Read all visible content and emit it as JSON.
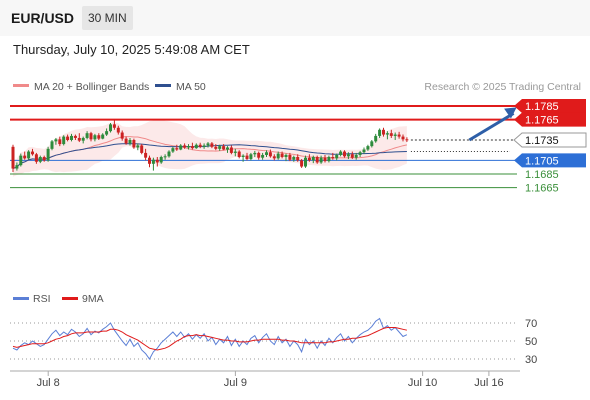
{
  "header": {
    "symbol": "EUR/USD",
    "timeframe": "30 MIN",
    "timestamp": "Thursday, July 10, 2025 5:49:08 AM CET"
  },
  "chart_data": {
    "type": "candlestick",
    "legend": [
      {
        "label": "MA 20 + Bollinger Bands",
        "color": "#f08a8a"
      },
      {
        "label": "MA 50",
        "color": "#2e4f8f"
      }
    ],
    "watermark": "Research © 2025 Trading Central",
    "y_range": [
      1.1655,
      1.18
    ],
    "x_ticks": [
      {
        "label": "Jul 8",
        "index": 8
      },
      {
        "label": "Jul 9",
        "index": 56
      },
      {
        "label": "Jul 10",
        "index": 104
      },
      {
        "label": "Jul 16",
        "index": 121
      }
    ],
    "current_price": {
      "label": "1.1735",
      "value": 1.1735
    },
    "levels": [
      {
        "label": "1.1785",
        "value": 1.1785,
        "kind": "resistance",
        "color": "#e01b1b"
      },
      {
        "label": "1.1765",
        "value": 1.1765,
        "kind": "resistance",
        "color": "#e01b1b"
      },
      {
        "label": "1.1705",
        "value": 1.1705,
        "kind": "pivot",
        "color": "#2d6fd6"
      },
      {
        "label": "1.1685",
        "value": 1.1685,
        "kind": "support",
        "color": "#3a8f3a"
      },
      {
        "label": "1.1665",
        "value": 1.1665,
        "kind": "support",
        "color": "#3a8f3a"
      }
    ],
    "forecast_arrow": {
      "from_index": 117,
      "from_value": 1.1735,
      "to_index": 124,
      "to_value": 1.1783,
      "color": "#2e5fa8"
    },
    "candles": [
      [
        1.1725,
        1.1728,
        1.1688,
        1.1693
      ],
      [
        1.1693,
        1.1702,
        1.169,
        1.1698
      ],
      [
        1.1698,
        1.1715,
        1.1696,
        1.1712
      ],
      [
        1.1712,
        1.1718,
        1.1706,
        1.1708
      ],
      [
        1.1708,
        1.172,
        1.1706,
        1.1718
      ],
      [
        1.1718,
        1.1722,
        1.1712,
        1.1714
      ],
      [
        1.1714,
        1.1716,
        1.17,
        1.1703
      ],
      [
        1.1703,
        1.1712,
        1.1701,
        1.171
      ],
      [
        1.171,
        1.1712,
        1.1703,
        1.1705
      ],
      [
        1.1705,
        1.1725,
        1.1703,
        1.1722
      ],
      [
        1.1722,
        1.1735,
        1.172,
        1.1733
      ],
      [
        1.1733,
        1.1738,
        1.1728,
        1.1736
      ],
      [
        1.1736,
        1.174,
        1.1726,
        1.1729
      ],
      [
        1.1729,
        1.1742,
        1.1727,
        1.174
      ],
      [
        1.174,
        1.1743,
        1.1733,
        1.1735
      ],
      [
        1.1735,
        1.1744,
        1.1733,
        1.1741
      ],
      [
        1.1741,
        1.1743,
        1.1735,
        1.1738
      ],
      [
        1.1738,
        1.1745,
        1.1732,
        1.1734
      ],
      [
        1.1734,
        1.174,
        1.173,
        1.1738
      ],
      [
        1.1738,
        1.1748,
        1.1736,
        1.1745
      ],
      [
        1.1745,
        1.1747,
        1.1733,
        1.1736
      ],
      [
        1.1736,
        1.1744,
        1.1733,
        1.1742
      ],
      [
        1.1742,
        1.1745,
        1.1735,
        1.1737
      ],
      [
        1.1737,
        1.1745,
        1.1736,
        1.1743
      ],
      [
        1.1743,
        1.1752,
        1.1741,
        1.1748
      ],
      [
        1.1748,
        1.176,
        1.1746,
        1.1758
      ],
      [
        1.1758,
        1.1765,
        1.175,
        1.1753
      ],
      [
        1.1753,
        1.1756,
        1.1743,
        1.1746
      ],
      [
        1.1746,
        1.1749,
        1.1734,
        1.1737
      ],
      [
        1.1737,
        1.174,
        1.1728,
        1.173
      ],
      [
        1.173,
        1.1738,
        1.1727,
        1.1735
      ],
      [
        1.1735,
        1.1737,
        1.1722,
        1.1724
      ],
      [
        1.1724,
        1.173,
        1.172,
        1.1727
      ],
      [
        1.1727,
        1.1729,
        1.1714,
        1.1716
      ],
      [
        1.1716,
        1.1722,
        1.1705,
        1.1709
      ],
      [
        1.1709,
        1.1712,
        1.1695,
        1.17
      ],
      [
        1.17,
        1.1709,
        1.169,
        1.1706
      ],
      [
        1.1706,
        1.171,
        1.1696,
        1.1702
      ],
      [
        1.1702,
        1.1712,
        1.17,
        1.171
      ],
      [
        1.171,
        1.1714,
        1.1706,
        1.1711
      ],
      [
        1.1711,
        1.172,
        1.1709,
        1.1718
      ],
      [
        1.1718,
        1.1725,
        1.1716,
        1.1723
      ],
      [
        1.1723,
        1.1728,
        1.1719,
        1.1721
      ],
      [
        1.1721,
        1.1729,
        1.172,
        1.1727
      ],
      [
        1.1727,
        1.173,
        1.1722,
        1.1724
      ],
      [
        1.1724,
        1.1729,
        1.1721,
        1.1726
      ],
      [
        1.1726,
        1.1731,
        1.1721,
        1.1723
      ],
      [
        1.1723,
        1.173,
        1.1722,
        1.1728
      ],
      [
        1.1728,
        1.1731,
        1.1723,
        1.1725
      ],
      [
        1.1725,
        1.173,
        1.1722,
        1.1727
      ],
      [
        1.1727,
        1.1732,
        1.1724,
        1.173
      ],
      [
        1.173,
        1.1732,
        1.1723,
        1.1725
      ],
      [
        1.1725,
        1.1729,
        1.172,
        1.1722
      ],
      [
        1.1722,
        1.1728,
        1.1719,
        1.1726
      ],
      [
        1.1726,
        1.1729,
        1.172,
        1.1721
      ],
      [
        1.1721,
        1.1726,
        1.1716,
        1.1724
      ],
      [
        1.1724,
        1.1727,
        1.1714,
        1.1716
      ],
      [
        1.1716,
        1.1722,
        1.1711,
        1.1718
      ],
      [
        1.1718,
        1.172,
        1.1708,
        1.171
      ],
      [
        1.171,
        1.1714,
        1.1703,
        1.1712
      ],
      [
        1.1712,
        1.1716,
        1.1705,
        1.1707
      ],
      [
        1.1707,
        1.1716,
        1.1705,
        1.1714
      ],
      [
        1.1714,
        1.1719,
        1.171,
        1.1716
      ],
      [
        1.1716,
        1.1718,
        1.1706,
        1.1709
      ],
      [
        1.1709,
        1.1716,
        1.1706,
        1.1713
      ],
      [
        1.1713,
        1.172,
        1.171,
        1.1717
      ],
      [
        1.1717,
        1.1721,
        1.1709,
        1.1711
      ],
      [
        1.1711,
        1.1714,
        1.1705,
        1.1708
      ],
      [
        1.1708,
        1.1718,
        1.1706,
        1.1715
      ],
      [
        1.1715,
        1.1718,
        1.1708,
        1.171
      ],
      [
        1.171,
        1.1715,
        1.1704,
        1.1713
      ],
      [
        1.1713,
        1.1716,
        1.1704,
        1.1706
      ],
      [
        1.1706,
        1.1712,
        1.1703,
        1.171
      ],
      [
        1.171,
        1.1714,
        1.1703,
        1.1705
      ],
      [
        1.1705,
        1.1707,
        1.1694,
        1.1696
      ],
      [
        1.1696,
        1.1712,
        1.1694,
        1.1709
      ],
      [
        1.1709,
        1.1714,
        1.1703,
        1.1705
      ],
      [
        1.1705,
        1.1712,
        1.1701,
        1.171
      ],
      [
        1.171,
        1.1712,
        1.17,
        1.1702
      ],
      [
        1.1702,
        1.1712,
        1.17,
        1.1709
      ],
      [
        1.1709,
        1.1713,
        1.1702,
        1.1704
      ],
      [
        1.1704,
        1.1712,
        1.1702,
        1.171
      ],
      [
        1.171,
        1.1716,
        1.1706,
        1.1708
      ],
      [
        1.1708,
        1.1715,
        1.1705,
        1.1713
      ],
      [
        1.1713,
        1.172,
        1.1711,
        1.1718
      ],
      [
        1.1718,
        1.172,
        1.1709,
        1.1711
      ],
      [
        1.1711,
        1.1717,
        1.1707,
        1.1714
      ],
      [
        1.1714,
        1.1718,
        1.1707,
        1.1709
      ],
      [
        1.1709,
        1.1716,
        1.1706,
        1.1713
      ],
      [
        1.1713,
        1.1719,
        1.171,
        1.1717
      ],
      [
        1.1717,
        1.1724,
        1.1715,
        1.1721
      ],
      [
        1.1721,
        1.1728,
        1.1719,
        1.1726
      ],
      [
        1.1726,
        1.1735,
        1.1724,
        1.1733
      ],
      [
        1.1733,
        1.1744,
        1.1731,
        1.1741
      ],
      [
        1.1741,
        1.1752,
        1.1738,
        1.175
      ],
      [
        1.175,
        1.1753,
        1.174,
        1.1743
      ],
      [
        1.1743,
        1.1748,
        1.1736,
        1.1745
      ],
      [
        1.1745,
        1.175,
        1.1738,
        1.1741
      ],
      [
        1.1741,
        1.1746,
        1.1735,
        1.1743
      ],
      [
        1.1743,
        1.1747,
        1.1737,
        1.174
      ],
      [
        1.174,
        1.1743,
        1.1733,
        1.1736
      ],
      [
        1.1736,
        1.1739,
        1.1732,
        1.1735
      ]
    ],
    "rsi": {
      "label": "RSI",
      "color": "#5b7fd6",
      "ticks": [
        "70",
        "50",
        "30"
      ],
      "range": [
        15,
        85
      ],
      "values": [
        42,
        40,
        45,
        48,
        46,
        50,
        47,
        44,
        46,
        52,
        58,
        62,
        56,
        60,
        57,
        63,
        60,
        55,
        58,
        64,
        57,
        61,
        59,
        63,
        66,
        70,
        62,
        56,
        50,
        45,
        52,
        44,
        48,
        40,
        36,
        30,
        38,
        42,
        48,
        52,
        56,
        60,
        55,
        60,
        54,
        58,
        52,
        57,
        53,
        58,
        50,
        54,
        46,
        52,
        48,
        55,
        45,
        52,
        44,
        50,
        46,
        53,
        56,
        48,
        54,
        58,
        50,
        46,
        55,
        48,
        52,
        44,
        50,
        46,
        38,
        52,
        46,
        50,
        42,
        50,
        45,
        53,
        48,
        54,
        58,
        50,
        55,
        48,
        53,
        57,
        60,
        62,
        66,
        72,
        75,
        64,
        67,
        62,
        65,
        60,
        55,
        57
      ],
      "ma_label": "9MA",
      "ma_color": "#e01b1b",
      "ma_values": [
        44,
        43,
        44,
        45,
        46,
        47,
        47,
        47,
        47,
        48,
        50,
        52,
        53,
        55,
        56,
        58,
        59,
        59,
        59,
        60,
        60,
        60,
        60,
        61,
        61,
        63,
        63,
        62,
        60,
        57,
        55,
        53,
        51,
        48,
        45,
        42,
        41,
        40,
        41,
        42,
        44,
        47,
        50,
        52,
        55,
        56,
        56,
        57,
        56,
        56,
        55,
        54,
        53,
        52,
        51,
        51,
        50,
        50,
        49,
        49,
        49,
        50,
        51,
        51,
        52,
        52,
        52,
        52,
        52,
        51,
        51,
        50,
        50,
        49,
        48,
        48,
        48,
        48,
        48,
        48,
        48,
        49,
        49,
        50,
        51,
        52,
        52,
        53,
        53,
        54,
        55,
        56,
        58,
        60,
        62,
        64,
        65,
        65,
        65,
        64,
        63,
        62
      ]
    }
  }
}
